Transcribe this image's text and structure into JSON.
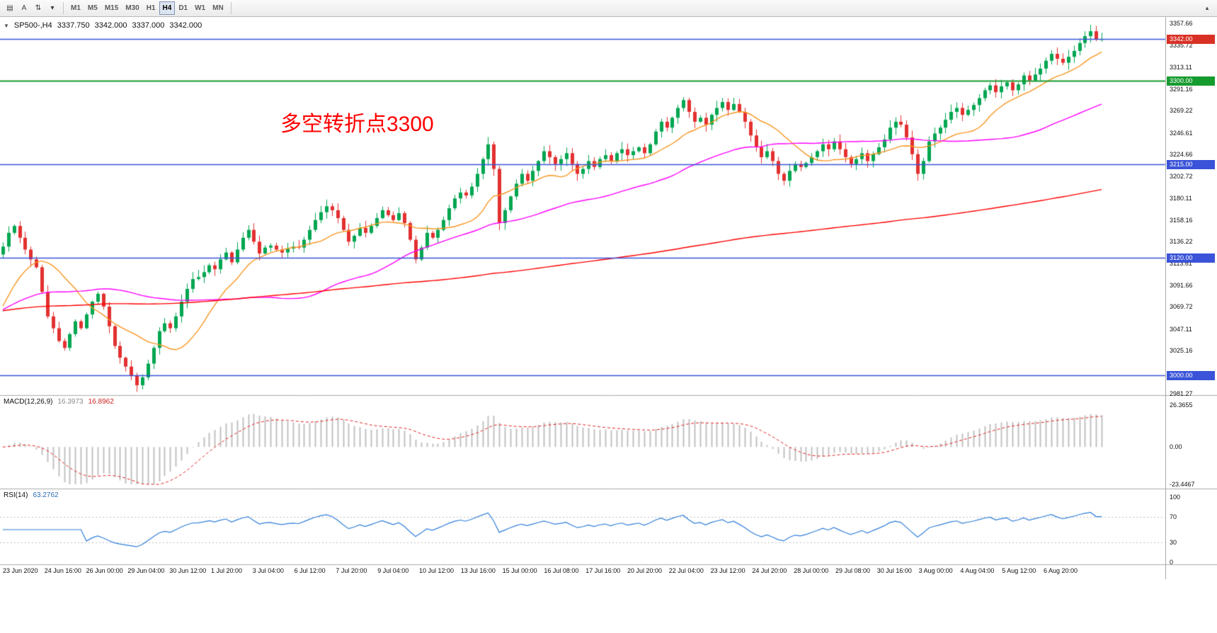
{
  "toolbar": {
    "tools": [
      {
        "name": "chart-bars-icon",
        "glyph": "▤"
      },
      {
        "name": "text-tool-button",
        "glyph": "A"
      },
      {
        "name": "arrows-tool-button",
        "glyph": "⇅"
      },
      {
        "name": "tool-dropdown-icon",
        "glyph": "▾"
      }
    ],
    "timeframes": [
      "M1",
      "M5",
      "M15",
      "M30",
      "H1",
      "H4",
      "D1",
      "W1",
      "MN"
    ],
    "active_timeframe": "H4",
    "more_glyph": "▴"
  },
  "chart_header": {
    "icon_glyph": "▼",
    "symbol": "SP500-,H4",
    "open": "3337.750",
    "high": "3342.000",
    "low": "3337.000",
    "close": "3342.000"
  },
  "annotation": {
    "text": "多空转折点3300",
    "color": "#FF0000"
  },
  "price_axis": {
    "ticks": [
      "3357.66",
      "3335.72",
      "3313.11",
      "3291.16",
      "3269.22",
      "3246.61",
      "3224.66",
      "3202.72",
      "3180.11",
      "3158.16",
      "3136.22",
      "3113.61",
      "3091.66",
      "3069.72",
      "3047.11",
      "3025.16",
      "2981.27"
    ],
    "badges": [
      {
        "label": "3342.00",
        "price": 3342.0,
        "bg": "#d93025",
        "type": "current-price"
      },
      {
        "label": "3300.00",
        "price": 3300.0,
        "bg": "#169b2f",
        "type": "level"
      },
      {
        "label": "3215.00",
        "price": 3215.0,
        "bg": "#3a53d8",
        "type": "level"
      },
      {
        "label": "3120.00",
        "price": 3120.0,
        "bg": "#3a53d8",
        "type": "level"
      },
      {
        "label": "3000.00",
        "price": 3000.0,
        "bg": "#3a53d8",
        "type": "level"
      }
    ]
  },
  "hlines": [
    {
      "price": 3342.0,
      "color": "#3a53d8",
      "width": 1.4
    },
    {
      "price": 3300.0,
      "color": "#169b2f",
      "width": 2
    },
    {
      "price": 3215.0,
      "color": "#3a53d8",
      "width": 1.6
    },
    {
      "price": 3120.0,
      "color": "#3a53d8",
      "width": 1.6
    },
    {
      "price": 3000.0,
      "color": "#3a53d8",
      "width": 1.6
    }
  ],
  "macd_panel": {
    "label": "MACD(12,26,9)",
    "value1": "16.3973",
    "value2": "16.8962",
    "axis": [
      "26.3655",
      "0.00",
      "-23.4467"
    ],
    "max": 26.3655,
    "min": -23.4467
  },
  "rsi_panel": {
    "label": "RSI(14)",
    "value": "63.2762",
    "axis": [
      "100",
      "70",
      "30",
      "0"
    ],
    "levels": [
      70,
      30
    ]
  },
  "time_axis": {
    "labels": [
      "23 Jun 2020",
      "24 Jun 16:00",
      "26 Jun 00:00",
      "29 Jun 04:00",
      "30 Jun 12:00",
      "1 Jul 20:00",
      "3 Jul 04:00",
      "6 Jul 12:00",
      "7 Jul 20:00",
      "9 Jul 04:00",
      "10 Jul 12:00",
      "13 Jul 16:00",
      "15 Jul 00:00",
      "16 Jul 08:00",
      "17 Jul 16:00",
      "20 Jul 20:00",
      "22 Jul 04:00",
      "23 Jul 12:00",
      "24 Jul 20:00",
      "28 Jul 00:00",
      "29 Jul 08:00",
      "30 Jul 16:00",
      "3 Aug 00:00",
      "4 Aug 04:00",
      "5 Aug 12:00",
      "6 Aug 20:00"
    ]
  },
  "chart_data": {
    "type": "candlestick",
    "symbol": "SP500",
    "timeframe": "H4",
    "title": "SP500-,H4 3337.750 3342.000 3337.000 3342.000",
    "price_range": {
      "min": 2981.27,
      "max": 3357.66
    },
    "closes": [
      3131,
      3145,
      3152,
      3140,
      3128,
      3118,
      3110,
      3085,
      3060,
      3048,
      3035,
      3028,
      3042,
      3055,
      3048,
      3062,
      3075,
      3083,
      3070,
      3050,
      3030,
      3018,
      3009,
      3000,
      2990,
      2998,
      3012,
      3028,
      3045,
      3053,
      3048,
      3060,
      3075,
      3088,
      3098,
      3100,
      3105,
      3112,
      3108,
      3118,
      3125,
      3115,
      3128,
      3140,
      3148,
      3136,
      3124,
      3130,
      3132,
      3128,
      3125,
      3129,
      3131,
      3130,
      3138,
      3148,
      3158,
      3166,
      3172,
      3168,
      3160,
      3148,
      3136,
      3142,
      3150,
      3145,
      3152,
      3160,
      3168,
      3163,
      3158,
      3165,
      3155,
      3138,
      3118,
      3130,
      3145,
      3140,
      3148,
      3158,
      3170,
      3180,
      3186,
      3183,
      3192,
      3205,
      3220,
      3235,
      3210,
      3155,
      3168,
      3182,
      3195,
      3205,
      3198,
      3208,
      3218,
      3228,
      3222,
      3215,
      3220,
      3226,
      3215,
      3205,
      3210,
      3218,
      3212,
      3220,
      3224,
      3218,
      3226,
      3230,
      3224,
      3228,
      3232,
      3226,
      3235,
      3248,
      3258,
      3252,
      3262,
      3272,
      3280,
      3268,
      3258,
      3262,
      3255,
      3265,
      3272,
      3278,
      3270,
      3276,
      3268,
      3258,
      3244,
      3232,
      3222,
      3228,
      3218,
      3205,
      3198,
      3208,
      3215,
      3212,
      3216,
      3222,
      3228,
      3235,
      3230,
      3238,
      3230,
      3222,
      3215,
      3220,
      3226,
      3218,
      3225,
      3232,
      3240,
      3252,
      3258,
      3255,
      3242,
      3225,
      3205,
      3218,
      3238,
      3246,
      3252,
      3260,
      3268,
      3272,
      3265,
      3270,
      3275,
      3282,
      3290,
      3295,
      3288,
      3294,
      3298,
      3290,
      3296,
      3305,
      3300,
      3306,
      3312,
      3320,
      3327,
      3322,
      3318,
      3324,
      3330,
      3338,
      3345,
      3350,
      3342,
      3342
    ],
    "moving_averages": [
      {
        "period": 13,
        "color": "#f79620"
      },
      {
        "period": 48,
        "color": "#ff00ff"
      },
      {
        "period": 200,
        "color": "#ff0000"
      }
    ],
    "colors": {
      "up": "#00a651",
      "down": "#e33030",
      "macd_hist": "#c0c0c0",
      "macd_signal": "#e02020",
      "rsi_line": "#2f7ed8",
      "level_dotted": "#bdbdbd",
      "separator": "#ababab"
    },
    "indicators": {
      "macd": {
        "fast": 12,
        "slow": 26,
        "signal": 9
      },
      "rsi": {
        "period": 14
      }
    }
  }
}
